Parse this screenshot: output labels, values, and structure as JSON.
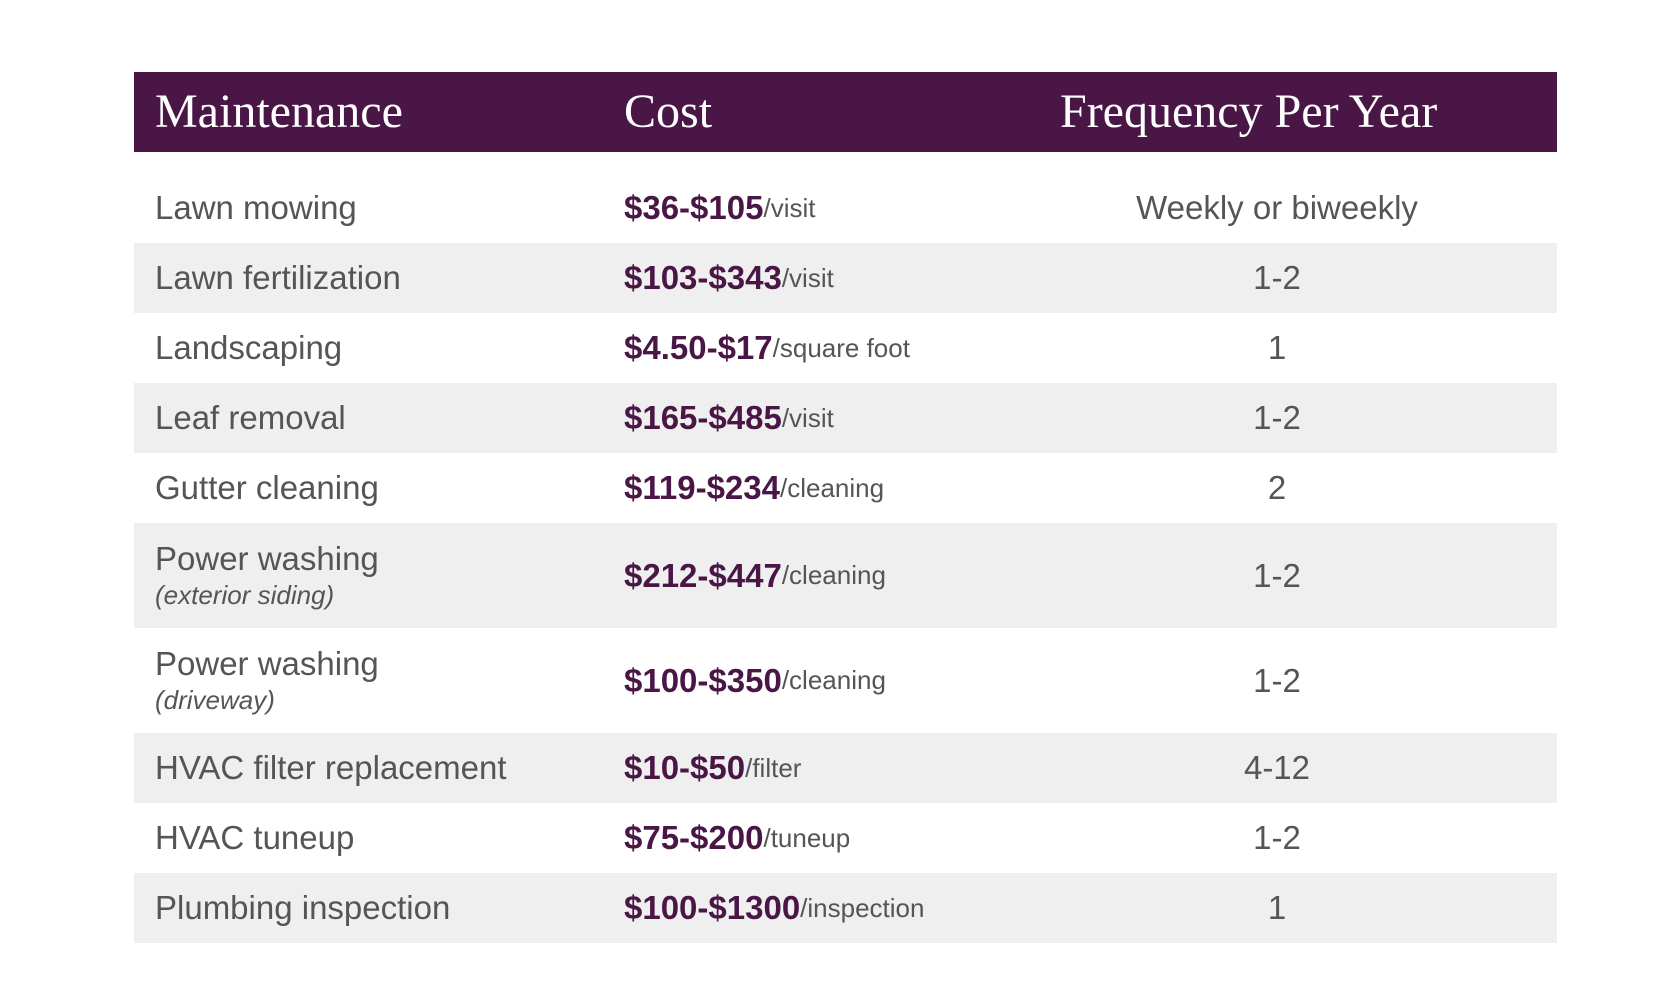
{
  "table": {
    "header": [
      "Maintenance",
      "Cost",
      "Frequency Per Year"
    ],
    "rows": [
      {
        "maintenance": "Lawn mowing",
        "cost": "$36-$105",
        "unit": "/visit",
        "frequency": "Weekly or biweekly"
      },
      {
        "maintenance": "Lawn fertilization",
        "cost": "$103-$343",
        "unit": "/visit",
        "frequency": "1-2"
      },
      {
        "maintenance": "Landscaping",
        "cost": "$4.50-$17",
        "unit": "/square foot",
        "frequency": "1"
      },
      {
        "maintenance": "Leaf removal",
        "cost": "$165-$485",
        "unit": "/visit",
        "frequency": "1-2"
      },
      {
        "maintenance": "Gutter cleaning",
        "cost": "$119-$234",
        "unit": "/cleaning",
        "frequency": "2"
      },
      {
        "maintenance": "Power washing",
        "note": "(exterior siding)",
        "cost": "$212-$447",
        "unit": "/cleaning",
        "frequency": "1-2"
      },
      {
        "maintenance": "Power washing",
        "note": "(driveway)",
        "cost": "$100-$350",
        "unit": "/cleaning",
        "frequency": "1-2"
      },
      {
        "maintenance": "HVAC filter replacement",
        "cost": "$10-$50",
        "unit": "/filter",
        "frequency": "4-12"
      },
      {
        "maintenance": "HVAC tuneup",
        "cost": "$75-$200",
        "unit": "/tuneup",
        "frequency": "1-2"
      },
      {
        "maintenance": "Plumbing inspection",
        "cost": "$100-$1300",
        "unit": "/inspection",
        "frequency": "1"
      }
    ]
  }
}
